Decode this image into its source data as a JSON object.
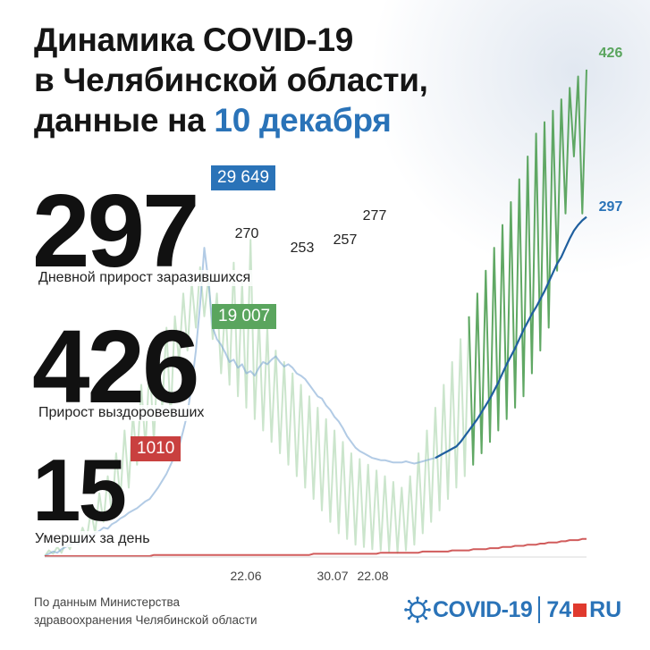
{
  "title": {
    "line1": "Динамика COVID-19",
    "line2": "в Челябинской области,",
    "line3_prefix": "данные на ",
    "line3_date": "10 декабря"
  },
  "stats": {
    "infected": {
      "value": "297",
      "label": "Дневной прирост заразившихся",
      "total": "29 649",
      "color": "#2a73b8"
    },
    "recovered": {
      "value": "426",
      "label": "Прирост выздоровевших",
      "total": "19 007",
      "color": "#5aa55e"
    },
    "deaths": {
      "value": "15",
      "label": "Умерших за день",
      "total": "1010",
      "color": "#c9403f"
    }
  },
  "source": {
    "line1": "По данным Министерства",
    "line2": "здравоохранения Челябинской области"
  },
  "logo": {
    "covid": "COVID-19",
    "num": "74",
    "ru": "RU"
  },
  "chart_data": {
    "type": "line",
    "x_tick_labels": [
      "22.06",
      "30.07",
      "22.08"
    ],
    "annotations": [
      "270",
      "253",
      "257",
      "277",
      "426",
      "297"
    ],
    "series": [],
    "ylim": [
      0,
      440
    ],
    "grid": false,
    "legend": "none",
    "peaks": [
      {
        "label": "270",
        "value": 270,
        "series": "infected"
      },
      {
        "label": "253",
        "value": 253,
        "series": "recovered"
      },
      {
        "label": "257",
        "value": 257,
        "series": "recovered"
      },
      {
        "label": "277",
        "value": 277,
        "series": "recovered"
      },
      {
        "label": "426",
        "value": 426,
        "series": "recovered"
      },
      {
        "label": "297",
        "value": 297,
        "series": "infected"
      }
    ],
    "infected_daily": [
      0,
      2,
      4,
      3,
      6,
      8,
      10,
      12,
      11,
      14,
      16,
      18,
      20,
      22,
      25,
      24,
      28,
      30,
      33,
      35,
      38,
      40,
      42,
      45,
      48,
      50,
      55,
      60,
      66,
      72,
      80,
      88,
      96,
      110,
      125,
      150,
      180,
      220,
      270,
      240,
      200,
      190,
      185,
      178,
      170,
      172,
      165,
      168,
      160,
      162,
      158,
      165,
      170,
      168,
      172,
      175,
      170,
      166,
      168,
      165,
      160,
      158,
      155,
      150,
      145,
      140,
      138,
      132,
      128,
      122,
      118,
      112,
      105,
      100,
      95,
      92,
      90,
      88,
      86,
      85,
      84,
      84,
      83,
      82,
      82,
      82,
      83,
      82,
      81,
      82,
      83,
      84,
      85,
      86,
      88,
      90,
      92,
      94,
      96,
      100,
      105,
      110,
      115,
      120,
      126,
      132,
      138,
      145,
      152,
      160,
      168,
      175,
      182,
      190,
      198,
      205,
      212,
      218,
      225,
      232,
      240,
      248,
      256,
      262,
      270,
      278,
      285,
      290,
      294,
      297
    ],
    "recovered_daily": [
      0,
      5,
      2,
      8,
      3,
      12,
      6,
      18,
      10,
      25,
      15,
      40,
      20,
      55,
      30,
      70,
      35,
      90,
      50,
      110,
      60,
      125,
      80,
      150,
      95,
      170,
      100,
      180,
      130,
      200,
      120,
      210,
      170,
      230,
      180,
      240,
      200,
      253,
      210,
      245,
      190,
      230,
      160,
      220,
      150,
      257,
      140,
      240,
      130,
      277,
      120,
      210,
      110,
      200,
      100,
      180,
      90,
      170,
      80,
      160,
      70,
      150,
      60,
      140,
      50,
      130,
      40,
      120,
      30,
      110,
      20,
      100,
      15,
      90,
      10,
      85,
      8,
      80,
      6,
      75,
      5,
      70,
      4,
      65,
      3,
      60,
      5,
      70,
      10,
      90,
      20,
      110,
      30,
      130,
      40,
      150,
      50,
      170,
      60,
      190,
      70,
      210,
      80,
      230,
      90,
      250,
      100,
      270,
      110,
      290,
      120,
      310,
      130,
      330,
      140,
      350,
      160,
      370,
      180,
      380,
      200,
      390,
      250,
      400,
      300,
      410,
      350,
      420,
      300,
      426
    ],
    "deaths_daily": [
      0,
      0,
      0,
      0,
      0,
      0,
      0,
      0,
      0,
      0,
      0,
      0,
      0,
      0,
      0,
      0,
      0,
      0,
      0,
      0,
      0,
      0,
      0,
      0,
      0,
      0,
      1,
      1,
      1,
      1,
      1,
      1,
      1,
      1,
      1,
      1,
      1,
      1,
      1,
      1,
      1,
      1,
      1,
      1,
      1,
      1,
      1,
      1,
      1,
      1,
      1,
      1,
      1,
      1,
      1,
      1,
      1,
      1,
      1,
      1,
      1,
      1,
      1,
      1,
      2,
      2,
      2,
      2,
      2,
      2,
      2,
      2,
      2,
      2,
      2,
      2,
      2,
      2,
      2,
      2,
      3,
      3,
      3,
      3,
      3,
      3,
      3,
      3,
      3,
      3,
      4,
      4,
      4,
      4,
      4,
      4,
      4,
      5,
      5,
      5,
      5,
      5,
      6,
      6,
      6,
      6,
      7,
      7,
      7,
      8,
      8,
      8,
      9,
      9,
      9,
      10,
      10,
      10,
      11,
      11,
      12,
      12,
      12,
      13,
      13,
      14,
      14,
      14,
      15,
      15
    ]
  }
}
